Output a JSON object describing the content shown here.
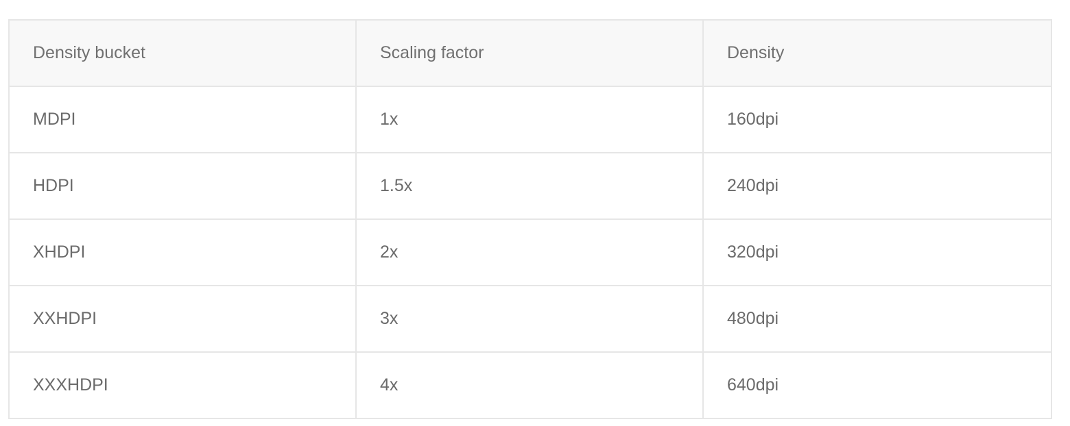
{
  "table": {
    "headers": [
      "Density bucket",
      "Scaling factor",
      "Density"
    ],
    "rows": [
      [
        "MDPI",
        "1x",
        "160dpi"
      ],
      [
        "HDPI",
        "1.5x",
        "240dpi"
      ],
      [
        "XHDPI",
        "2x",
        "320dpi"
      ],
      [
        "XXHDPI",
        "3x",
        "480dpi"
      ],
      [
        "XXXHDPI",
        "4x",
        "640dpi"
      ]
    ]
  },
  "colors": {
    "header_background": "#f8f8f8",
    "border": "#e6e6e6",
    "text": "#6b6b6b"
  }
}
